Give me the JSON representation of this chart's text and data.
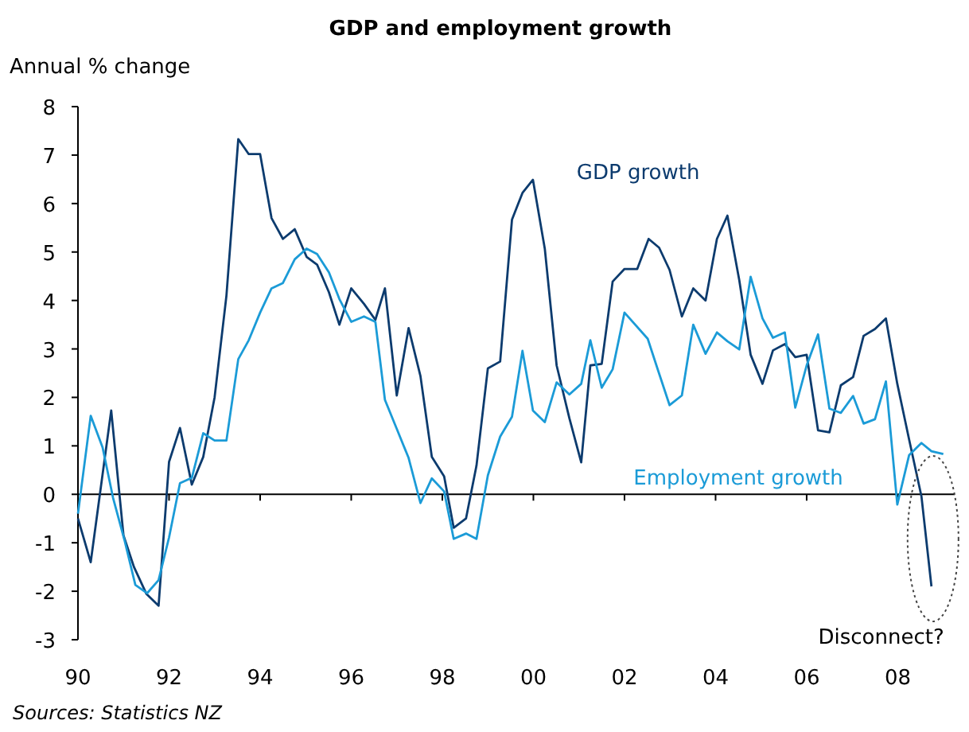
{
  "chart_data": {
    "type": "line",
    "title": "GDP and employment growth",
    "ylabel": "Annual % change",
    "xlim": [
      1990,
      2009.25
    ],
    "ylim": [
      -3,
      8
    ],
    "xticks": [
      {
        "value": 1990,
        "label": "90"
      },
      {
        "value": 1992,
        "label": "92"
      },
      {
        "value": 1994,
        "label": "94"
      },
      {
        "value": 1996,
        "label": "96"
      },
      {
        "value": 1998,
        "label": "98"
      },
      {
        "value": 2000,
        "label": "00"
      },
      {
        "value": 2002,
        "label": "02"
      },
      {
        "value": 2004,
        "label": "04"
      },
      {
        "value": 2006,
        "label": "06"
      },
      {
        "value": 2008,
        "label": "08"
      }
    ],
    "yticks": [
      -3,
      -2,
      -1,
      0,
      1,
      2,
      3,
      4,
      5,
      6,
      7,
      8
    ],
    "grid": false,
    "marker": "none",
    "ref_lines": [
      {
        "axis": "y",
        "value": 0,
        "color": "#000000"
      }
    ],
    "line_style": "solid",
    "series": [
      {
        "name": "GDP growth",
        "color": "#0c3b6e",
        "x": [
          1990.0,
          1990.28,
          1990.73,
          1991.0,
          1991.23,
          1991.5,
          1991.77,
          1992.0,
          1992.24,
          1992.5,
          1992.75,
          1993.0,
          1993.26,
          1993.52,
          1993.75,
          1994.0,
          1994.25,
          1994.5,
          1994.76,
          1995.02,
          1995.25,
          1995.51,
          1995.74,
          1996.0,
          1996.28,
          1996.53,
          1996.74,
          1997.0,
          1997.26,
          1997.52,
          1997.77,
          1998.04,
          1998.25,
          1998.52,
          1998.75,
          1999.0,
          1999.27,
          1999.53,
          1999.76,
          1999.99,
          2000.25,
          2000.51,
          2000.79,
          2001.05,
          2001.25,
          2001.5,
          2001.74,
          2002.0,
          2002.28,
          2002.53,
          2002.76,
          2002.99,
          2003.26,
          2003.51,
          2003.78,
          2004.03,
          2004.26,
          2004.52,
          2004.77,
          2005.03,
          2005.26,
          2005.52,
          2005.75,
          2006.0,
          2006.25,
          2006.5,
          2006.75,
          2007.02,
          2007.25,
          2007.5,
          2007.74,
          2007.99,
          2008.25,
          2008.52,
          2008.74
        ],
        "values": [
          -0.5,
          -1.4,
          1.73,
          -0.85,
          -1.5,
          -2.05,
          -2.3,
          0.67,
          1.37,
          0.2,
          0.77,
          2.0,
          4.1,
          7.33,
          7.02,
          7.02,
          5.7,
          5.27,
          5.47,
          4.9,
          4.74,
          4.17,
          3.5,
          4.25,
          3.93,
          3.6,
          4.25,
          2.04,
          3.43,
          2.44,
          0.77,
          0.37,
          -0.69,
          -0.5,
          0.59,
          2.6,
          2.74,
          5.67,
          6.22,
          6.49,
          5.07,
          2.66,
          1.57,
          0.66,
          2.66,
          2.69,
          4.39,
          4.65,
          4.65,
          5.27,
          5.09,
          4.63,
          3.67,
          4.25,
          4.0,
          5.27,
          5.75,
          4.42,
          2.88,
          2.28,
          2.97,
          3.1,
          2.83,
          2.88,
          1.32,
          1.28,
          2.25,
          2.42,
          3.27,
          3.41,
          3.63,
          2.28,
          1.13,
          -0.04,
          -1.9
        ]
      },
      {
        "name": "Employment growth",
        "color": "#1b9bd7",
        "x": [
          1990.0,
          1990.28,
          1990.54,
          1990.77,
          1991.02,
          1991.26,
          1991.52,
          1991.77,
          1992.0,
          1992.24,
          1992.5,
          1992.75,
          1993.0,
          1993.26,
          1993.52,
          1993.75,
          1994.0,
          1994.25,
          1994.5,
          1994.76,
          1995.02,
          1995.25,
          1995.51,
          1995.74,
          1996.0,
          1996.28,
          1996.53,
          1996.74,
          1997.0,
          1997.26,
          1997.52,
          1997.77,
          1998.04,
          1998.25,
          1998.52,
          1998.75,
          1999.0,
          1999.27,
          1999.53,
          1999.76,
          1999.99,
          2000.25,
          2000.51,
          2000.79,
          2001.05,
          2001.25,
          2001.5,
          2001.74,
          2002.0,
          2002.51,
          2002.74,
          2002.99,
          2003.26,
          2003.51,
          2003.78,
          2004.03,
          2004.26,
          2004.52,
          2004.77,
          2005.03,
          2005.26,
          2005.52,
          2005.75,
          2006.0,
          2006.25,
          2006.5,
          2006.75,
          2007.02,
          2007.25,
          2007.5,
          2007.74,
          2007.99,
          2008.25,
          2008.52,
          2008.74,
          2009.0
        ],
        "values": [
          -0.4,
          1.62,
          0.97,
          -0.07,
          -0.94,
          -1.87,
          -2.04,
          -1.77,
          -0.89,
          0.23,
          0.34,
          1.26,
          1.11,
          1.11,
          2.79,
          3.18,
          3.75,
          4.25,
          4.36,
          4.85,
          5.07,
          4.96,
          4.58,
          4.03,
          3.56,
          3.67,
          3.56,
          1.95,
          1.35,
          0.75,
          -0.18,
          0.33,
          0.06,
          -0.92,
          -0.81,
          -0.92,
          0.39,
          1.19,
          1.6,
          2.96,
          1.73,
          1.49,
          2.31,
          2.06,
          2.28,
          3.18,
          2.2,
          2.58,
          3.75,
          3.21,
          2.55,
          1.84,
          2.04,
          3.5,
          2.9,
          3.34,
          3.16,
          2.99,
          4.49,
          3.63,
          3.23,
          3.34,
          1.79,
          2.66,
          3.3,
          1.77,
          1.68,
          2.03,
          1.46,
          1.55,
          2.33,
          -0.21,
          0.81,
          1.06,
          0.89,
          0.83
        ]
      }
    ],
    "annotations": [
      {
        "text": "Disconnect?",
        "x": 2008.74,
        "y": -1.9
      },
      "Sources:  Statistics NZ"
    ]
  }
}
